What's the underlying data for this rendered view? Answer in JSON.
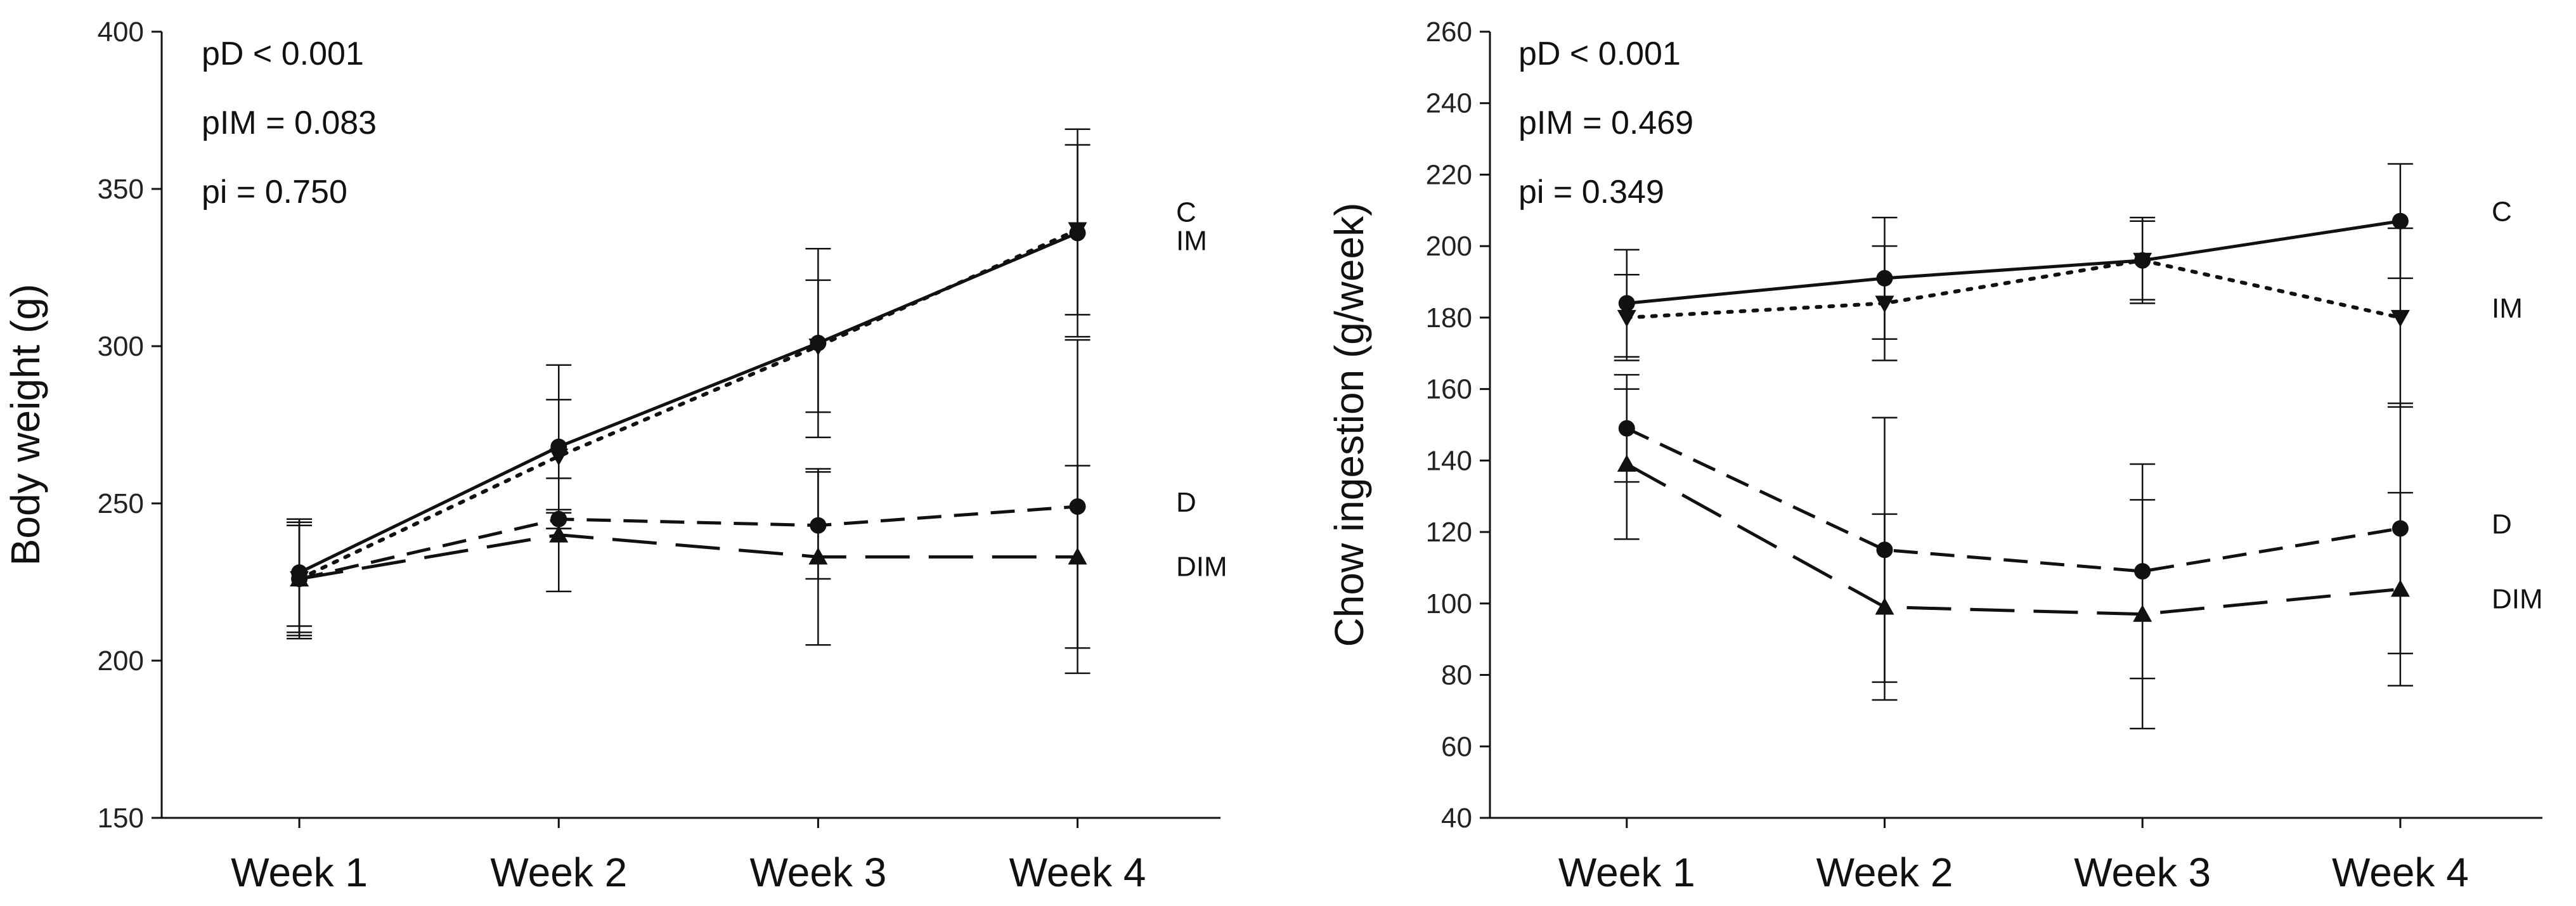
{
  "chart_data": [
    {
      "type": "line",
      "ylabel": "Body weight (g)",
      "xlabel": "",
      "categories": [
        "Week 1",
        "Week 2",
        "Week 3",
        "Week 4"
      ],
      "ylim": [
        150,
        400
      ],
      "yticks": [
        150,
        200,
        250,
        300,
        350,
        400
      ],
      "stats": [
        "pD < 0.001",
        "pIM = 0.083",
        "pi = 0.750"
      ],
      "series": [
        {
          "name": "C",
          "marker": "circle",
          "dash": "solid",
          "values": [
            228,
            268,
            301,
            336
          ],
          "err": [
            17,
            26,
            30,
            33
          ]
        },
        {
          "name": "IM",
          "marker": "triangle-down",
          "dash": "dotted",
          "values": [
            226,
            265,
            300,
            337
          ],
          "err": [
            18,
            18,
            21,
            27
          ]
        },
        {
          "name": "D",
          "marker": "circle",
          "dash": "dashed",
          "values": [
            226,
            245,
            243,
            249
          ],
          "err": [
            17,
            3,
            17,
            53
          ]
        },
        {
          "name": "DIM",
          "marker": "triangle-up",
          "dash": "longdash",
          "values": [
            226,
            240,
            233,
            233
          ],
          "err": [
            19,
            18,
            28,
            29
          ]
        }
      ]
    },
    {
      "type": "line",
      "ylabel": "Chow ingestion (g/week)",
      "xlabel": "",
      "categories": [
        "Week 1",
        "Week 2",
        "Week 3",
        "Week 4"
      ],
      "ylim": [
        40,
        260
      ],
      "yticks": [
        40,
        60,
        80,
        100,
        120,
        140,
        160,
        180,
        200,
        220,
        240,
        260
      ],
      "stats": [
        "pD < 0.001",
        "pIM = 0.469",
        "pi = 0.349"
      ],
      "series": [
        {
          "name": "C",
          "marker": "circle",
          "dash": "solid",
          "values": [
            184,
            191,
            196,
            207
          ],
          "err": [
            15,
            17,
            11,
            16
          ]
        },
        {
          "name": "IM",
          "marker": "triangle-down",
          "dash": "dotted",
          "values": [
            180,
            184,
            196,
            180
          ],
          "err": [
            12,
            16,
            12,
            25
          ]
        },
        {
          "name": "D",
          "marker": "circle",
          "dash": "dashed",
          "values": [
            149,
            115,
            109,
            121
          ],
          "err": [
            15,
            37,
            30,
            35
          ]
        },
        {
          "name": "DIM",
          "marker": "triangle-up",
          "dash": "longdash",
          "values": [
            139,
            99,
            97,
            104
          ],
          "err": [
            21,
            26,
            32,
            27
          ]
        }
      ]
    }
  ]
}
